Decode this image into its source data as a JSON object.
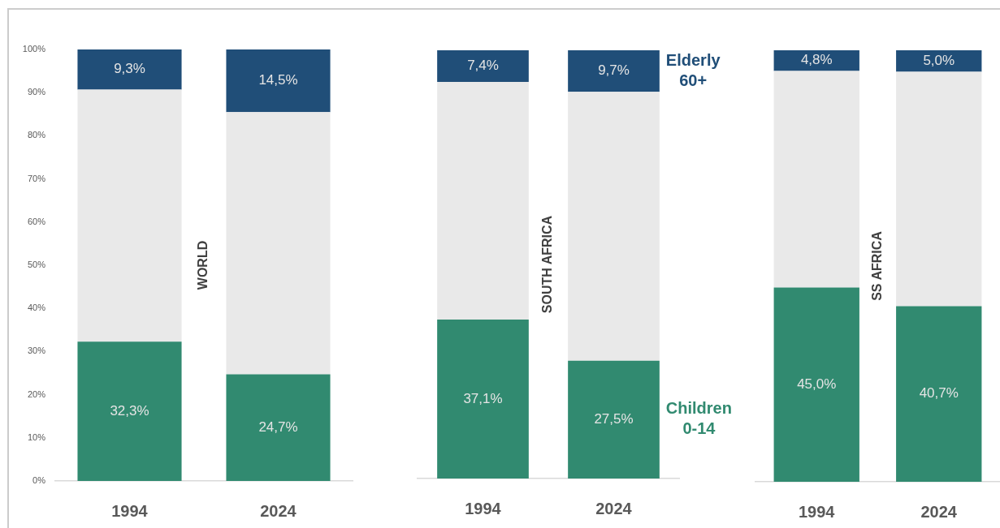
{
  "chart_data": [
    {
      "type": "bar",
      "stacked": true,
      "categories": [
        "1994",
        "2024"
      ],
      "series": [
        {
          "color": "#318a70",
          "values": [
            32.3,
            24.7
          ],
          "value_labels": [
            "32,3%",
            "24,7%"
          ]
        },
        {
          "color": "#e9e9e9",
          "values": [
            58.4,
            60.8
          ]
        },
        {
          "color": "#204e78",
          "values": [
            9.3,
            14.5
          ],
          "value_labels": [
            "9,3%",
            "14,5%"
          ]
        }
      ],
      "ylim": [
        0,
        100
      ],
      "yticks": [
        {
          "value": 0,
          "label": "0%"
        },
        {
          "value": 10,
          "label": "10%"
        },
        {
          "value": 20,
          "label": "20%"
        },
        {
          "value": 30,
          "label": "30%"
        },
        {
          "value": 40,
          "label": "40%"
        },
        {
          "value": 50,
          "label": "50%"
        },
        {
          "value": 60,
          "label": "60%"
        },
        {
          "value": 70,
          "label": "70%"
        },
        {
          "value": 80,
          "label": "80%"
        },
        {
          "value": 90,
          "label": "90%"
        },
        {
          "value": 100,
          "label": "100%"
        }
      ],
      "annotations": [
        "WORLD"
      ]
    },
    {
      "type": "bar",
      "stacked": true,
      "categories": [
        "1994",
        "2024"
      ],
      "series": [
        {
          "name": "Children 0-14",
          "color": "#318a70",
          "values": [
            37.1,
            27.5
          ],
          "value_labels": [
            "37,1%",
            "27,5%"
          ]
        },
        {
          "color": "#e9e9e9",
          "values": [
            55.5,
            62.8
          ]
        },
        {
          "name": "Elderly 60+",
          "color": "#204e78",
          "values": [
            7.4,
            9.7
          ],
          "value_labels": [
            "7,4%",
            "9,7%"
          ]
        }
      ],
      "ylim": [
        0,
        100
      ],
      "tick_labels": "x",
      "annotations": [
        "SOUTH AFRICA"
      ]
    },
    {
      "type": "bar",
      "stacked": true,
      "categories": [
        "1994",
        "2024"
      ],
      "series": [
        {
          "color": "#318a70",
          "values": [
            45.0,
            40.7
          ],
          "value_labels": [
            "45,0%",
            "40,7%"
          ]
        },
        {
          "color": "#e9e9e9",
          "values": [
            50.2,
            54.3
          ]
        },
        {
          "color": "#204e78",
          "values": [
            4.8,
            5.0
          ],
          "value_labels": [
            "4,8%",
            "5,0%"
          ]
        }
      ],
      "ylim": [
        0,
        100
      ],
      "tick_labels": "x",
      "annotations": [
        "SS AFRICA"
      ]
    }
  ]
}
